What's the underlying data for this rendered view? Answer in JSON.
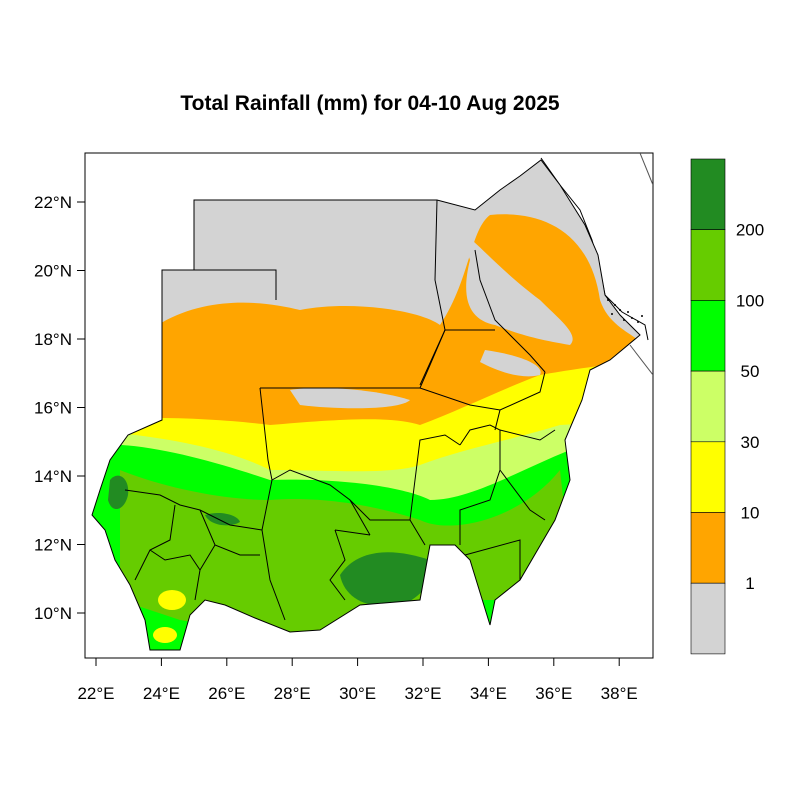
{
  "title": "Total Rainfall (mm) for 04-10 Aug 2025",
  "axes": {
    "lon_ticks": [
      "22°E",
      "24°E",
      "26°E",
      "28°E",
      "30°E",
      "32°E",
      "34°E",
      "36°E",
      "38°E"
    ],
    "lat_ticks": [
      "22°N",
      "20°N",
      "18°N",
      "16°N",
      "14°N",
      "12°N",
      "10°N"
    ]
  },
  "legend": {
    "labels": [
      "200",
      "100",
      "50",
      "30",
      "10",
      "1"
    ],
    "colors": [
      "#228b22",
      "#66cc00",
      "#00ff00",
      "#ccff66",
      "#ffff00",
      "#ffa500",
      "#d3d3d3"
    ]
  },
  "colors": {
    "no_rain": "#d3d3d3",
    "r1": "#ffa500",
    "r10": "#ffff00",
    "r30": "#ccff66",
    "r50": "#00ff00",
    "r100": "#66cc00",
    "r200": "#228b22"
  }
}
